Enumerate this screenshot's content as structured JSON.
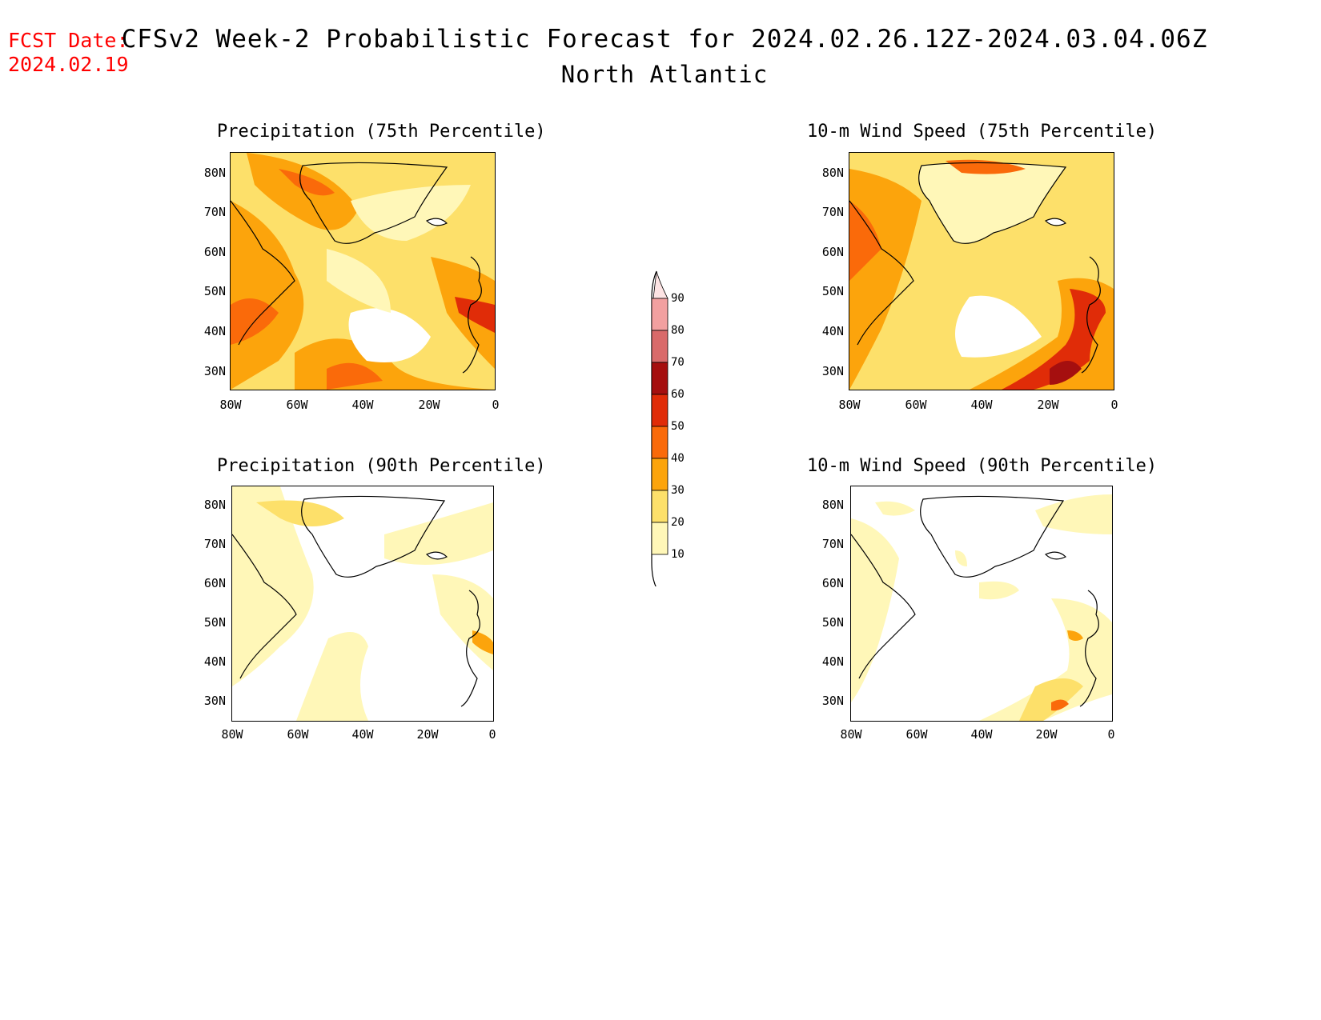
{
  "header": {
    "fcst_label": "FCST Date:",
    "fcst_date": "2024.02.19",
    "title": "CFSv2 Week-2 Probabilistic Forecast for 2024.02.26.12Z-2024.03.04.06Z",
    "subtitle": "North Atlantic"
  },
  "panels": [
    {
      "title": "Precipitation (75th Percentile)",
      "intensity": "high"
    },
    {
      "title": "10-m Wind Speed (75th Percentile)",
      "intensity": "high"
    },
    {
      "title": "Precipitation (90th Percentile)",
      "intensity": "low"
    },
    {
      "title": "10-m Wind Speed (90th Percentile)",
      "intensity": "low"
    }
  ],
  "axes": {
    "lat_labels": [
      "80N",
      "70N",
      "60N",
      "50N",
      "40N",
      "30N"
    ],
    "lon_labels": [
      "80W",
      "60W",
      "40W",
      "20W",
      "0"
    ]
  },
  "legend": {
    "levels": [
      "90",
      "80",
      "70",
      "60",
      "50",
      "40",
      "30",
      "20",
      "10"
    ],
    "colors": [
      "#fde4e4",
      "#f2a0a0",
      "#d96a6a",
      "#a50f0f",
      "#e02c08",
      "#fa6a0a",
      "#fca40c",
      "#fde06a",
      "#fff7b8"
    ]
  }
}
